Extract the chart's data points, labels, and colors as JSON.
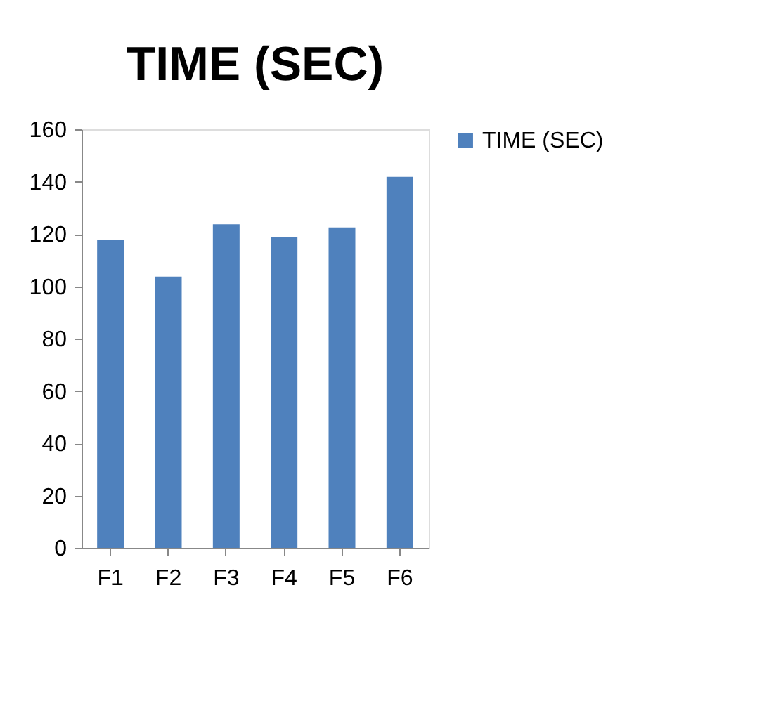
{
  "chart_data": {
    "type": "bar",
    "title": "TIME (SEC)",
    "categories": [
      "F1",
      "F2",
      "F3",
      "F4",
      "F5",
      "F6"
    ],
    "series": [
      {
        "name": "TIME (SEC)",
        "color": "#4f81bd",
        "values": [
          117.6,
          103.7,
          123.7,
          118.9,
          122.5,
          141.8
        ]
      }
    ],
    "ylim": [
      0,
      160
    ],
    "yticks": [
      0,
      20,
      40,
      60,
      80,
      100,
      120,
      140,
      160
    ],
    "grid": false,
    "legend": "right"
  }
}
